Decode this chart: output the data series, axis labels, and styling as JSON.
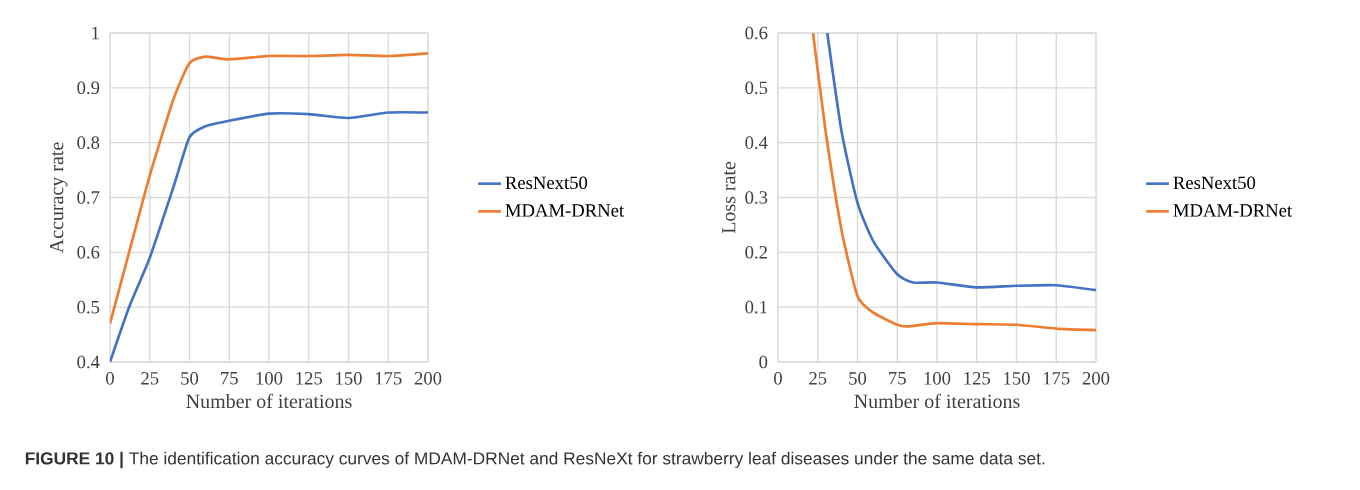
{
  "chart_data": [
    {
      "type": "line",
      "xlabel": "Number of iterations",
      "ylabel": "Accuracy rate",
      "xlim": [
        0,
        200
      ],
      "xticks": [
        0,
        25,
        50,
        75,
        100,
        125,
        150,
        175,
        200
      ],
      "ylim": [
        0.4,
        1
      ],
      "yticks": [
        0.4,
        0.5,
        0.6,
        0.7,
        0.8,
        0.9,
        1
      ],
      "grid": true,
      "legend": "right",
      "series": [
        {
          "name": "ResNext50",
          "color": "#4472c4",
          "x": [
            0,
            12,
            25,
            40,
            50,
            60,
            75,
            100,
            125,
            150,
            175,
            200
          ],
          "values": [
            0.4,
            0.5,
            0.59,
            0.72,
            0.81,
            0.83,
            0.84,
            0.853,
            0.852,
            0.845,
            0.855,
            0.855
          ]
        },
        {
          "name": "MDAM-DRNet",
          "color": "#ed7d31",
          "x": [
            0,
            12,
            25,
            40,
            50,
            60,
            75,
            100,
            125,
            150,
            175,
            200
          ],
          "values": [
            0.47,
            0.6,
            0.74,
            0.88,
            0.945,
            0.957,
            0.952,
            0.958,
            0.958,
            0.96,
            0.958,
            0.963
          ]
        }
      ],
      "annotations": [
        "**FIGURE 10 |** The identification accuracy curves of MDAM-DRNet and ResNeXt for strawberry leaf diseases under the same data set."
      ]
    },
    {
      "type": "line",
      "xlabel": "Number of iterations",
      "ylabel": "Loss rate",
      "xlim": [
        0,
        200
      ],
      "xticks": [
        0,
        25,
        50,
        75,
        100,
        125,
        150,
        175,
        200
      ],
      "ylim": [
        0,
        0.6
      ],
      "yticks": [
        0,
        0.1,
        0.2,
        0.3,
        0.4,
        0.5,
        0.6
      ],
      "grid": true,
      "legend": "right",
      "series": [
        {
          "name": "ResNext50",
          "color": "#4472c4",
          "x": [
            31,
            40,
            50,
            60,
            75,
            85,
            100,
            125,
            150,
            175,
            200
          ],
          "values": [
            0.6,
            0.42,
            0.29,
            0.22,
            0.16,
            0.145,
            0.145,
            0.136,
            0.139,
            0.14,
            0.131
          ]
        },
        {
          "name": "MDAM-DRNet",
          "color": "#ed7d31",
          "x": [
            22,
            30,
            40,
            50,
            60,
            75,
            82,
            100,
            125,
            150,
            175,
            200
          ],
          "values": [
            0.6,
            0.42,
            0.24,
            0.12,
            0.09,
            0.068,
            0.065,
            0.071,
            0.069,
            0.068,
            0.061,
            0.058
          ]
        }
      ]
    }
  ]
}
